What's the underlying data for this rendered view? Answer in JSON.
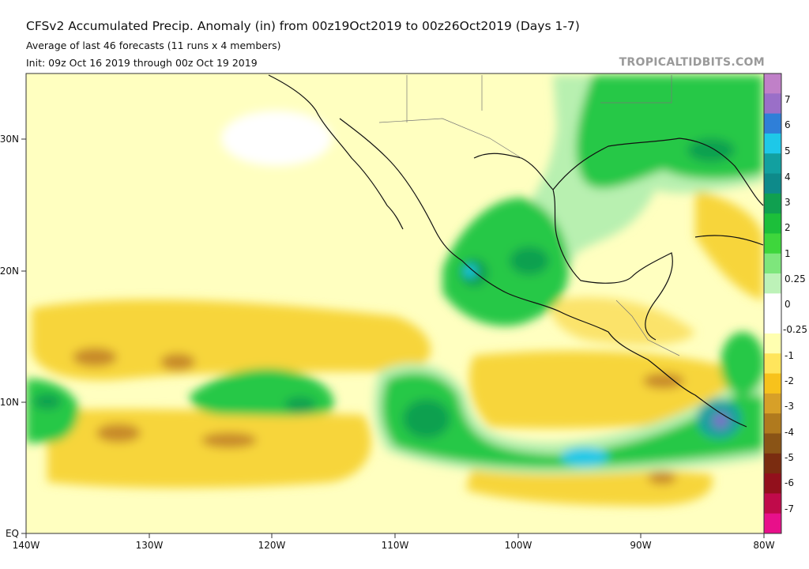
{
  "header": {
    "title": "CFSv2 Accumulated Precip. Anomaly (in) from 00z19Oct2019 to 00z26Oct2019 (Days 1-7)",
    "subtitle": "Average of last 46 forecasts (11 runs x 4 members)",
    "init": "Init: 09z Oct 16 2019 through 00z Oct 19 2019"
  },
  "brand": "TROPICALTIDBITS.COM",
  "axes": {
    "lat_labels": [
      "30N",
      "20N",
      "10N",
      "EQ"
    ],
    "lon_labels": [
      "140W",
      "130W",
      "120W",
      "110W",
      "100W",
      "90W",
      "80W"
    ]
  },
  "colorbar": {
    "labels": [
      "7",
      "6",
      "5",
      "4",
      "3",
      "2",
      "1",
      "0.25",
      "0",
      "-0.25",
      "-1",
      "-2",
      "-3",
      "-4",
      "-5",
      "-6",
      "-7"
    ],
    "colors": [
      "#c080c8",
      "#9a6fc8",
      "#2f7fd8",
      "#1ec8e8",
      "#12a0a0",
      "#0e8a8a",
      "#10a050",
      "#1cbf3a",
      "#3ed63c",
      "#7ee67c",
      "#bdf2b8",
      "#ffffff",
      "#ffffff",
      "#ffffb0",
      "#ffe55c",
      "#f7c21c",
      "#d7a028",
      "#b07a1e",
      "#8a5416",
      "#7a2c10",
      "#92101c",
      "#c00a4a",
      "#e8108a"
    ]
  },
  "legend_colors": {
    "dry_light": "#ffffc0",
    "dry": "#f6d52a",
    "very_dry": "#c88a2a",
    "wet_light": "#b8f0b0",
    "wet": "#26c846",
    "very_wet": "#0aa05a",
    "extreme_wet": "#18c8e8"
  }
}
